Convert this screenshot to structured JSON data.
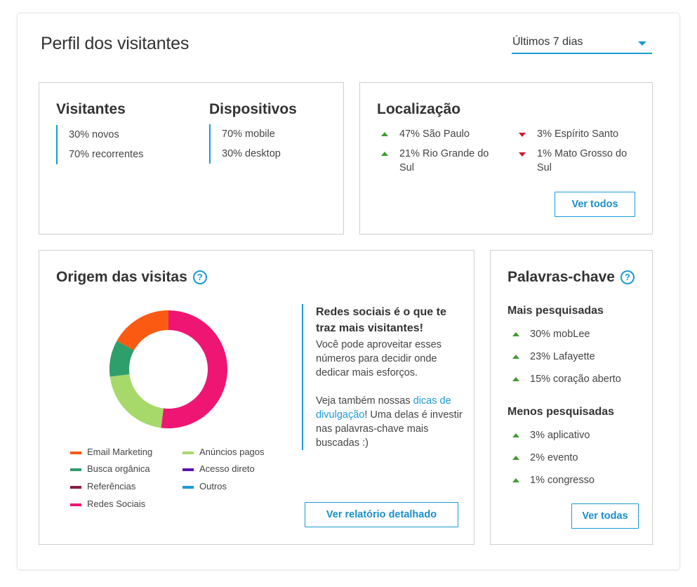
{
  "page": {
    "title": "Perfil dos visitantes"
  },
  "period_select": {
    "selected": "Últimos 7 dias"
  },
  "visitantes": {
    "title": "Visitantes",
    "items": [
      "30% novos",
      "70% recorrentes"
    ]
  },
  "dispositivos": {
    "title": "Dispositivos",
    "items": [
      "70% mobile",
      "30% desktop"
    ]
  },
  "localizacao": {
    "title": "Localização",
    "up": [
      "47% São Paulo",
      "21% Rio Grande do Sul"
    ],
    "down": [
      "3% Espírito Santo",
      "1% Mato Grosso do Sul"
    ],
    "button": "Ver todos"
  },
  "origem": {
    "title": "Origem das visitas",
    "help": "?",
    "legend": [
      {
        "label": "Email Marketing",
        "color": "#fa5a12"
      },
      {
        "label": "Anúncios pagos",
        "color": "#a6d96a"
      },
      {
        "label": "Busca orgânica",
        "color": "#2e9e6b"
      },
      {
        "label": "Acesso direto",
        "color": "#5b11b0"
      },
      {
        "label": "Referências",
        "color": "#8c1946"
      },
      {
        "label": "Outros",
        "color": "#1a9ad6"
      },
      {
        "label": "Redes Sociais",
        "color": "#ef1572"
      }
    ],
    "insight": {
      "title": "Redes sociais é o que te traz mais visitantes!",
      "text": "Você pode aproveitar esses números para decidir onde dedicar mais esforços.",
      "text2_before": "Veja também nossas ",
      "link": "dicas de divulgação",
      "text2_after": "! Uma delas é investir nas palavras-chave mais buscadas :)"
    },
    "button": "Ver relatório detalhado"
  },
  "chart_data": {
    "type": "pie",
    "categories": [
      "Redes Sociais",
      "Anúncios pagos",
      "Busca orgânica",
      "Email Marketing"
    ],
    "values": [
      52,
      21,
      10,
      17
    ],
    "colors": [
      "#ef1572",
      "#a6d96a",
      "#2e9e6b",
      "#fa5a12"
    ]
  },
  "palavras": {
    "title": "Palavras-chave",
    "help": "?",
    "mais_title": "Mais pesquisadas",
    "mais": [
      "30% mobLee",
      "23% Lafayette",
      "15% coração aberto"
    ],
    "menos_title": "Menos pesquisadas",
    "menos": [
      "3% aplicativo",
      "2% evento",
      "1% congresso"
    ],
    "button": "Ver todas"
  },
  "colors": {
    "accent": "#1a9ad6",
    "up": "#3e9b2f",
    "down": "#d0152c"
  }
}
